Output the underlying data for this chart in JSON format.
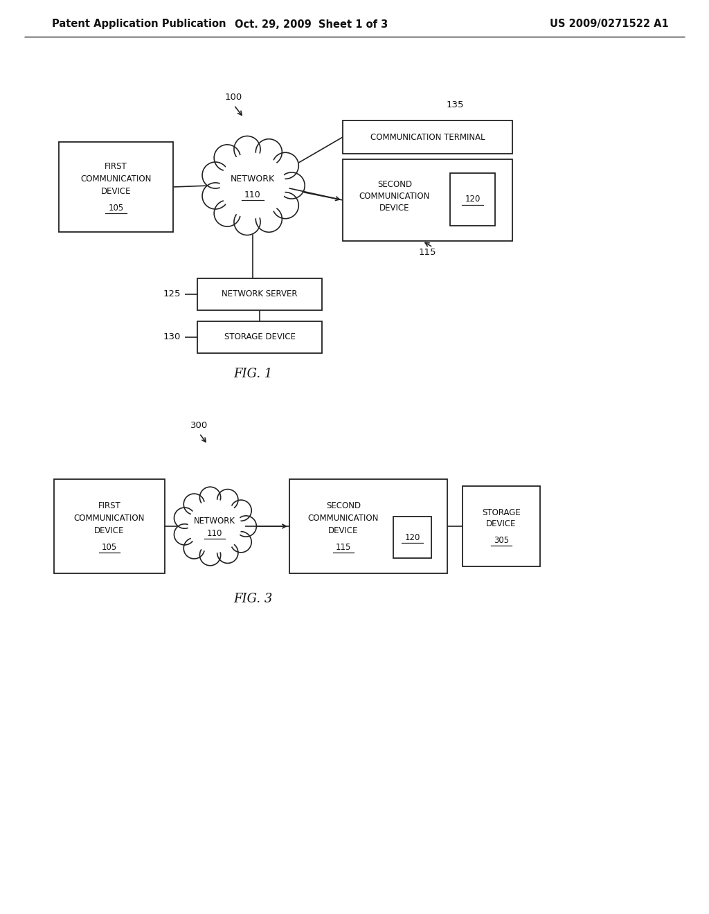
{
  "bg_color": "#ffffff",
  "header_text": "Patent Application Publication",
  "header_date": "Oct. 29, 2009  Sheet 1 of 3",
  "header_patent": "US 2009/0271522 A1",
  "fig1_caption": "FIG. 1",
  "fig3_caption": "FIG. 3",
  "line_color": "#222222",
  "text_color": "#111111"
}
